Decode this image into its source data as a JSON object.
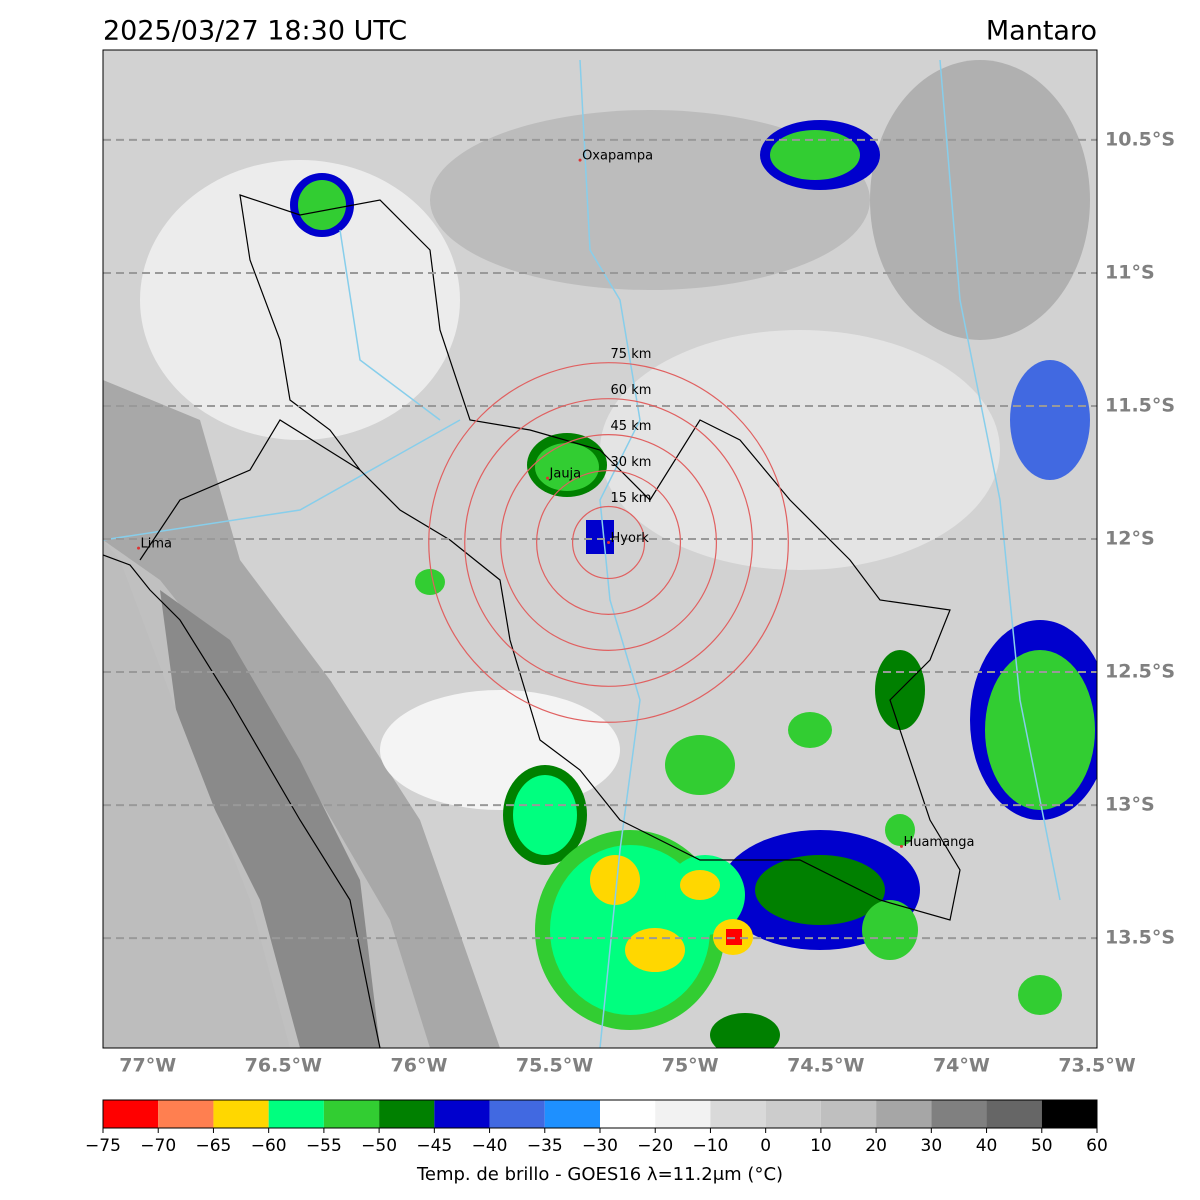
{
  "title": "2025/03/27 18:30 UTC",
  "region": "Mantaro",
  "map": {
    "xlim": [
      -77.165,
      -73.5
    ],
    "ylim": [
      -13.913,
      -10.162
    ],
    "xticks": [
      {
        "value": -77,
        "label": "77°W"
      },
      {
        "value": -76.5,
        "label": "76.5°W"
      },
      {
        "value": -76,
        "label": "76°W"
      },
      {
        "value": -75.5,
        "label": "75.5°W"
      },
      {
        "value": -75,
        "label": "75°W"
      },
      {
        "value": -74.5,
        "label": "74.5°W"
      },
      {
        "value": -74,
        "label": "74°W"
      },
      {
        "value": -73.5,
        "label": "73.5°W"
      }
    ],
    "yticks": [
      {
        "value": -10.5,
        "label": "10.5°S"
      },
      {
        "value": -11,
        "label": "11°S"
      },
      {
        "value": -11.5,
        "label": "11.5°S"
      },
      {
        "value": -12,
        "label": "12°S"
      },
      {
        "value": -12.5,
        "label": "12.5°S"
      },
      {
        "value": -13,
        "label": "13°S"
      },
      {
        "value": -13.5,
        "label": "13.5°S"
      }
    ],
    "cities": [
      {
        "name": "Oxapampa",
        "lon": -75.406,
        "lat": -10.576
      },
      {
        "name": "Jauja",
        "lon": -75.526,
        "lat": -11.771
      },
      {
        "name": "Hyork",
        "lon": -75.301,
        "lat": -12.013
      },
      {
        "name": "Lima",
        "lon": -77.034,
        "lat": -12.034
      },
      {
        "name": "Huamanga",
        "lon": -74.221,
        "lat": -13.155
      }
    ],
    "rings": [
      {
        "value": 15,
        "label": "15 km"
      },
      {
        "value": 30,
        "label": "30 km"
      },
      {
        "value": 45,
        "label": "45 km"
      },
      {
        "value": 60,
        "label": "60 km"
      },
      {
        "value": 75,
        "label": "75 km"
      }
    ]
  },
  "colorbar": {
    "label": "Temp. de brillo - GOES16 λ=11.2μm (°C)",
    "bounds": [
      {
        "value": -75,
        "label": "−75"
      },
      {
        "value": -70,
        "label": "−70"
      },
      {
        "value": -65,
        "label": "−65"
      },
      {
        "value": -60,
        "label": "−60"
      },
      {
        "value": -55,
        "label": "−55"
      },
      {
        "value": -50,
        "label": "−50"
      },
      {
        "value": -45,
        "label": "−45"
      },
      {
        "value": -40,
        "label": "−40"
      },
      {
        "value": -35,
        "label": "−35"
      },
      {
        "value": -30,
        "label": "−30"
      },
      {
        "value": -20,
        "label": "−20"
      },
      {
        "value": -10,
        "label": "−10"
      },
      0,
      10,
      20,
      30,
      40,
      50,
      60
    ],
    "colors": [
      "#ff0000",
      "#ff7f50",
      "#ffd700",
      "#00ff7f",
      "#32cd32",
      "#008000",
      "#0000cd",
      "#4169e1",
      "#1e90ff",
      "#ffffff",
      "#f2f2f2",
      "#d9d9d9",
      "#cccccc",
      "#bfbfbf",
      "#a6a6a6",
      "#808080",
      "#666666",
      "#000000"
    ]
  }
}
